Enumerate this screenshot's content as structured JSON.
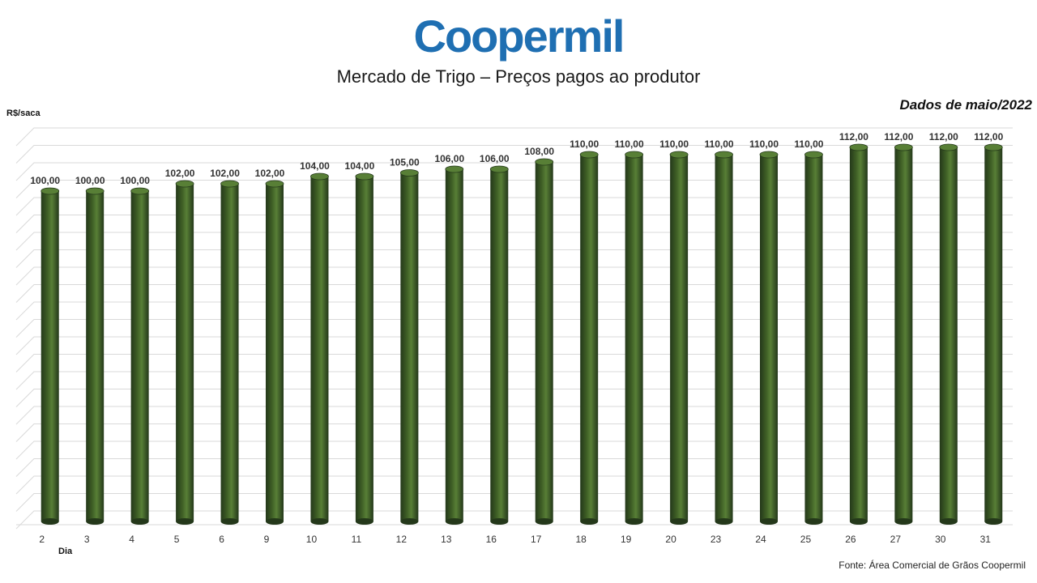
{
  "logo_text": "Coopermil",
  "source": "Fonte:  Área Comercial de Grãos Coopermil",
  "colors": {
    "logo": "#1f6fb2",
    "bar_body": "#3e5e25",
    "bar_dark": "#24381a",
    "bar_light": "#587f36",
    "grid": "#d9d9d9"
  },
  "chart_data": {
    "type": "bar",
    "title": "Mercado de Trigo – Preços pagos ao produtor",
    "subtitle": "Dados de maio/2022",
    "ylabel": "R$/saca",
    "xlabel": "Dia",
    "categories": [
      "2",
      "3",
      "4",
      "5",
      "6",
      "9",
      "10",
      "11",
      "12",
      "13",
      "16",
      "17",
      "18",
      "19",
      "20",
      "23",
      "24",
      "25",
      "26",
      "27",
      "30",
      "31"
    ],
    "values": [
      100,
      100,
      100,
      102,
      102,
      102,
      104,
      104,
      105,
      106,
      106,
      108,
      110,
      110,
      110,
      110,
      110,
      110,
      112,
      112,
      112,
      112
    ],
    "value_labels": [
      "100,00",
      "100,00",
      "100,00",
      "102,00",
      "102,00",
      "102,00",
      "104,00",
      "104,00",
      "105,00",
      "106,00",
      "106,00",
      "108,00",
      "110,00",
      "110,00",
      "110,00",
      "110,00",
      "110,00",
      "110,00",
      "112,00",
      "112,00",
      "112,00",
      "112,00"
    ],
    "grid": true,
    "bar_style": "3d-cylinder"
  }
}
